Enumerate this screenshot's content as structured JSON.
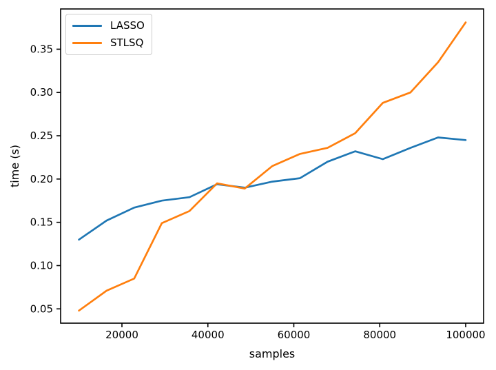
{
  "figure": {
    "background": "#ffffff",
    "spine_color": "#000000",
    "text_color": "#000000"
  },
  "chart_data": {
    "type": "line",
    "title": "",
    "xlabel": "samples",
    "ylabel": "time (s)",
    "x": [
      10000,
      16429,
      22857,
      29286,
      35714,
      42143,
      48571,
      55000,
      61429,
      67857,
      74286,
      80714,
      87143,
      93571,
      100000
    ],
    "series": [
      {
        "name": "LASSO",
        "color": "#1f77b4",
        "values": [
          0.13,
          0.152,
          0.167,
          0.175,
          0.179,
          0.194,
          0.19,
          0.197,
          0.201,
          0.22,
          0.232,
          0.223,
          0.236,
          0.248,
          0.245
        ]
      },
      {
        "name": "STLSQ",
        "color": "#ff7f0e",
        "values": [
          0.048,
          0.071,
          0.085,
          0.149,
          0.163,
          0.195,
          0.189,
          0.215,
          0.229,
          0.236,
          0.253,
          0.288,
          0.3,
          0.335,
          0.381
        ]
      }
    ],
    "x_ticks": [
      20000,
      40000,
      60000,
      80000,
      100000
    ],
    "x_tick_labels": [
      "20000",
      "40000",
      "60000",
      "80000",
      "100000"
    ],
    "y_ticks": [
      0.05,
      0.1,
      0.15,
      0.2,
      0.25,
      0.3,
      0.35
    ],
    "y_tick_labels": [
      "0.05",
      "0.10",
      "0.15",
      "0.20",
      "0.25",
      "0.30",
      "0.35"
    ],
    "xlim": [
      5730,
      104170
    ],
    "ylim": [
      0.0335,
      0.3965
    ],
    "grid": false,
    "legend_position": "upper left",
    "legend_entries": [
      "LASSO",
      "STLSQ"
    ]
  }
}
